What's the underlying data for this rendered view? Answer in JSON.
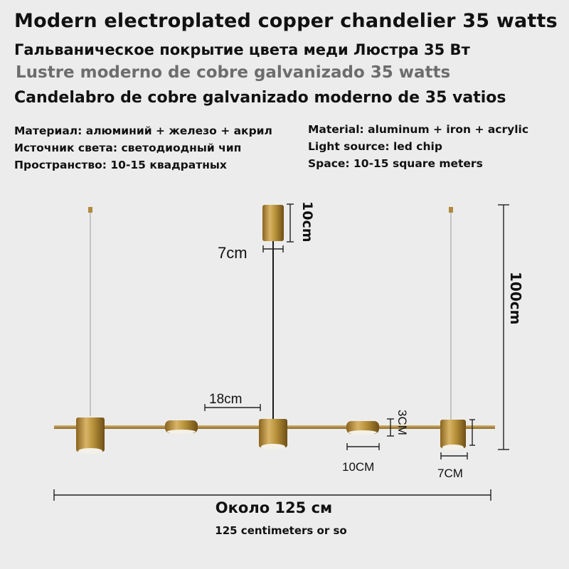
{
  "titles": {
    "english": "Modern electroplated copper chandelier 35 watts",
    "russian": "Гальваническое покрытие цвета меди Люстра 35 Вт",
    "portuguese": "Lustre moderno de cobre galvanizado 35 watts",
    "spanish": "Candelabro de cobre galvanizado moderno de 35 vatios"
  },
  "specs_ru": [
    "Материал: алюминий + железо + акрил",
    "Источник света: светодиодный чип",
    "Пространство: 10-15 квадратных"
  ],
  "specs_en": [
    "Material: aluminum + iron + acrylic",
    "Light source: led chip",
    "Space: 10-15 square meters"
  ],
  "dimensions": {
    "canopy_height": "10cm",
    "canopy_width": "7cm",
    "total_height": "100cm",
    "spacing": "18cm",
    "lamp_height": "3CM",
    "disc_width": "10CM",
    "cylinder_width": "7CM"
  },
  "total_length": {
    "ru": "Около 125 см",
    "en": "125 centimeters or so"
  },
  "colors": {
    "background": "#ececec",
    "brass": "#b8923a",
    "dim_line": "#222222"
  }
}
